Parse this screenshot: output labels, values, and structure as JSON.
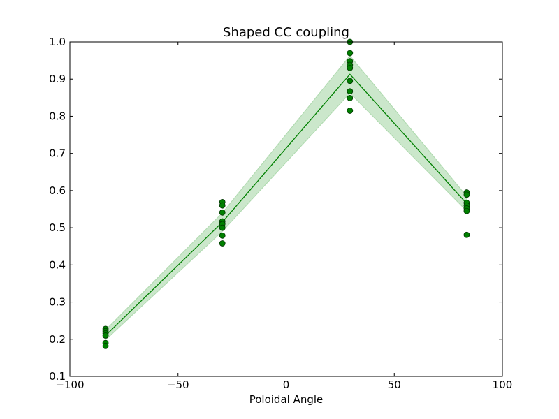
{
  "chart_data": {
    "type": "scatter",
    "title": "Shaped CC coupling",
    "xlabel": "Poloidal Angle",
    "ylabel": "",
    "xlim": [
      -100,
      100
    ],
    "ylim": [
      0.1,
      1.0
    ],
    "xticks": [
      -100,
      -50,
      0,
      50,
      100
    ],
    "xtick_labels": [
      "−100",
      "−50",
      "0",
      "50",
      "100"
    ],
    "yticks": [
      0.1,
      0.2,
      0.3,
      0.4,
      0.5,
      0.6,
      0.7,
      0.8,
      0.9,
      1.0
    ],
    "ytick_labels": [
      "0.1",
      "0.2",
      "0.3",
      "0.4",
      "0.5",
      "0.6",
      "0.7",
      "0.8",
      "0.9",
      "1.0"
    ],
    "grid": false,
    "colors": {
      "series": "#008000",
      "marker_edge": "#003300",
      "band_fill": "#8cc98c"
    },
    "points": [
      {
        "x": -83.5,
        "y": 0.228
      },
      {
        "x": -83.5,
        "y": 0.222
      },
      {
        "x": -83.5,
        "y": 0.216
      },
      {
        "x": -83.5,
        "y": 0.21
      },
      {
        "x": -83.5,
        "y": 0.19
      },
      {
        "x": -83.5,
        "y": 0.182
      },
      {
        "x": -29.5,
        "y": 0.569
      },
      {
        "x": -29.5,
        "y": 0.56
      },
      {
        "x": -29.5,
        "y": 0.541
      },
      {
        "x": -29.5,
        "y": 0.517
      },
      {
        "x": -29.5,
        "y": 0.51
      },
      {
        "x": -29.5,
        "y": 0.5
      },
      {
        "x": -29.5,
        "y": 0.479
      },
      {
        "x": -29.5,
        "y": 0.458
      },
      {
        "x": 29.5,
        "y": 1.0
      },
      {
        "x": 29.5,
        "y": 0.97
      },
      {
        "x": 29.5,
        "y": 0.948
      },
      {
        "x": 29.5,
        "y": 0.938
      },
      {
        "x": 29.5,
        "y": 0.93
      },
      {
        "x": 29.5,
        "y": 0.895
      },
      {
        "x": 29.5,
        "y": 0.867
      },
      {
        "x": 29.5,
        "y": 0.849
      },
      {
        "x": 29.5,
        "y": 0.815
      },
      {
        "x": 83.5,
        "y": 0.595
      },
      {
        "x": 83.5,
        "y": 0.589
      },
      {
        "x": 83.5,
        "y": 0.567
      },
      {
        "x": 83.5,
        "y": 0.56
      },
      {
        "x": 83.5,
        "y": 0.552
      },
      {
        "x": 83.5,
        "y": 0.545
      },
      {
        "x": 83.5,
        "y": 0.481
      }
    ],
    "fit_line": {
      "x": [
        -83.5,
        -29.5,
        29.5,
        83.5
      ],
      "y": [
        0.21,
        0.515,
        0.913,
        0.565
      ]
    },
    "band": {
      "x": [
        -83.5,
        -29.5,
        29.5,
        83.5
      ],
      "lower": [
        0.198,
        0.49,
        0.862,
        0.545
      ],
      "upper": [
        0.225,
        0.54,
        0.963,
        0.585
      ]
    }
  }
}
